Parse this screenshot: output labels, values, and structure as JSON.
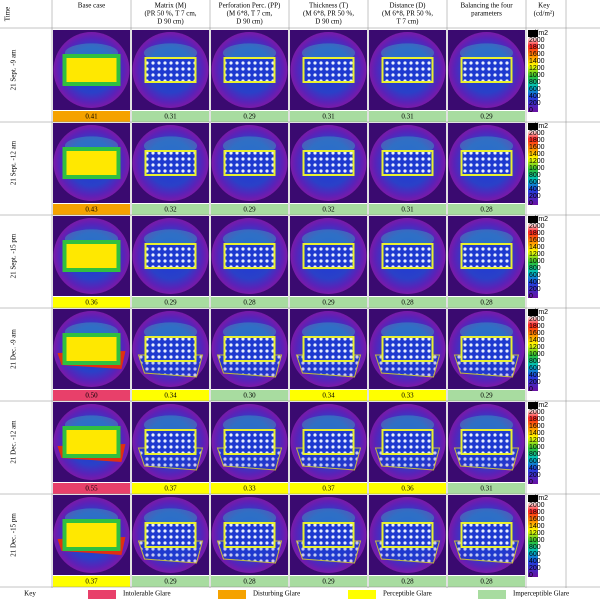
{
  "header": {
    "time": "Time",
    "columns": [
      [
        "Base case"
      ],
      [
        "Matrix (M)",
        "(PR 50 %, T 7 cm,",
        "D 90 cm)"
      ],
      [
        "Perforation Perc. (PP)",
        "(M 6*8, T 7 cm,",
        "D 90 cm)"
      ],
      [
        "Thickness (T)",
        "(M 6*8, PR 50 %,",
        "D 90 cm)"
      ],
      [
        "Distance (D)",
        "(M 6*8, PR 50 %,",
        "T 7 cm)"
      ],
      [
        "Balancing the four",
        "parameters"
      ]
    ],
    "key": [
      "Key",
      "(cd/m²)"
    ]
  },
  "rows": [
    {
      "time": "21 Sept. -9 am",
      "cells": [
        {
          "value": "0.41",
          "color": "#f5a200"
        },
        {
          "value": "0.31",
          "color": "#a8dca0"
        },
        {
          "value": "0.29",
          "color": "#a8dca0"
        },
        {
          "value": "0.31",
          "color": "#a8dca0"
        },
        {
          "value": "0.31",
          "color": "#a8dca0"
        },
        {
          "value": "0.29",
          "color": "#a8dca0"
        }
      ]
    },
    {
      "time": "21 Sept. -12 am",
      "cells": [
        {
          "value": "0.43",
          "color": "#f5a200"
        },
        {
          "value": "0.32",
          "color": "#a8dca0"
        },
        {
          "value": "0.29",
          "color": "#a8dca0"
        },
        {
          "value": "0.32",
          "color": "#a8dca0"
        },
        {
          "value": "0.31",
          "color": "#a8dca0"
        },
        {
          "value": "0.28",
          "color": "#a8dca0"
        }
      ]
    },
    {
      "time": "21 Sept. -15 pm",
      "cells": [
        {
          "value": "0.36",
          "color": "#ffff00"
        },
        {
          "value": "0.29",
          "color": "#a8dca0"
        },
        {
          "value": "0.28",
          "color": "#a8dca0"
        },
        {
          "value": "0.29",
          "color": "#a8dca0"
        },
        {
          "value": "0.28",
          "color": "#a8dca0"
        },
        {
          "value": "0.28",
          "color": "#a8dca0"
        }
      ]
    },
    {
      "time": "21 Dec. -9 am",
      "cells": [
        {
          "value": "0.50",
          "color": "#e8406a"
        },
        {
          "value": "0.34",
          "color": "#ffff00"
        },
        {
          "value": "0.30",
          "color": "#a8dca0"
        },
        {
          "value": "0.34",
          "color": "#ffff00"
        },
        {
          "value": "0.33",
          "color": "#ffff00"
        },
        {
          "value": "0.29",
          "color": "#a8dca0"
        }
      ]
    },
    {
      "time": "21 Dec. -12 am",
      "cells": [
        {
          "value": "0.55",
          "color": "#e8406a"
        },
        {
          "value": "0.37",
          "color": "#ffff00"
        },
        {
          "value": "0.33",
          "color": "#ffff00"
        },
        {
          "value": "0.37",
          "color": "#ffff00"
        },
        {
          "value": "0.36",
          "color": "#ffff00"
        },
        {
          "value": "0.31",
          "color": "#a8dca0"
        }
      ]
    },
    {
      "time": "21 Dec. -15 pm",
      "cells": [
        {
          "value": "0.37",
          "color": "#ffff00"
        },
        {
          "value": "0.29",
          "color": "#a8dca0"
        },
        {
          "value": "0.28",
          "color": "#a8dca0"
        },
        {
          "value": "0.29",
          "color": "#a8dca0"
        },
        {
          "value": "0.28",
          "color": "#a8dca0"
        },
        {
          "value": "0.28",
          "color": "#a8dca0"
        }
      ]
    }
  ],
  "scale": {
    "labels": [
      "cd/m2",
      "2000",
      "1800",
      "1600",
      "1400",
      "1200",
      "1000",
      "800",
      "600",
      "400",
      "200",
      "0"
    ]
  },
  "legend": {
    "title": "Key",
    "items": [
      {
        "label": "Intolerable Glare",
        "color": "#e8406a"
      },
      {
        "label": "Disturbing Glare",
        "color": "#f5a200"
      },
      {
        "label": "Perceptible Glare",
        "color": "#ffff00"
      },
      {
        "label": "Imperceptible Glare",
        "color": "#a8dca0"
      }
    ]
  }
}
